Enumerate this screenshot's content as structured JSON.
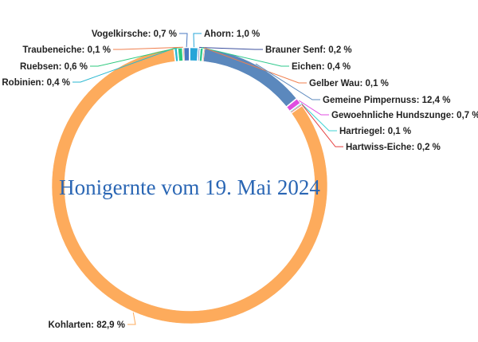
{
  "chart_data": {
    "type": "pie",
    "subtype": "donut",
    "title": "Honigernte vom 19. Mai 2024",
    "unit": "%",
    "slices": [
      {
        "name": "Ahorn",
        "value": 1.0,
        "label": "Ahorn: 1,0 %",
        "color": "#27a5d8"
      },
      {
        "name": "Brauner Senf",
        "value": 0.2,
        "label": "Brauner Senf: 0,2 %",
        "color": "#3b4f9e"
      },
      {
        "name": "Eichen",
        "value": 0.4,
        "label": "Eichen: 0,4 %",
        "color": "#2fc98d"
      },
      {
        "name": "Gelber Wau",
        "value": 0.1,
        "label": "Gelber Wau: 0,1 %",
        "color": "#f07f4e"
      },
      {
        "name": "Gemeine Pimpernuss",
        "value": 12.4,
        "label": "Gemeine Pimpernuss: 12,4 %",
        "color": "#5b88bd"
      },
      {
        "name": "Gewoehnliche Hundszunge",
        "value": 0.7,
        "label": "Gewoehnliche Hundszunge: 0,7 %",
        "color": "#e04de0"
      },
      {
        "name": "Hartriegel",
        "value": 0.1,
        "label": "Hartriegel: 0,1 %",
        "color": "#3fd3d3"
      },
      {
        "name": "Hartwiss-Eiche",
        "value": 0.2,
        "label": "Hartwiss-Eiche: 0,2 %",
        "color": "#e53f3f"
      },
      {
        "name": "Kohlarten",
        "value": 82.9,
        "label": "Kohlarten: 82,9 %",
        "color": "#fdab5c"
      },
      {
        "name": "Robinien",
        "value": 0.4,
        "label": "Robinien: 0,4 %",
        "color": "#28b7d0"
      },
      {
        "name": "Ruebsen",
        "value": 0.6,
        "label": "Ruebsen: 0,6 %",
        "color": "#2dc97d"
      },
      {
        "name": "Traubeneiche",
        "value": 0.1,
        "label": "Traubeneiche: 0,1 %",
        "color": "#f07f4e"
      },
      {
        "name": "Vogelkirsche",
        "value": 0.7,
        "label": "Vogelkirsche: 0,7 %",
        "color": "#4a78c0"
      }
    ]
  }
}
